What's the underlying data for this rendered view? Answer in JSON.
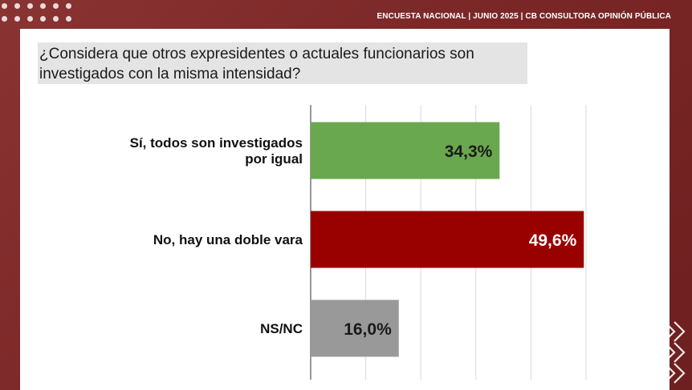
{
  "header": {
    "title": "ENCUESTA NACIONAL | JUNIO 2025 | CB CONSULTORA OPINIÓN PÚBLICA"
  },
  "question": {
    "text": "¿Considera que otros expresidentes o actuales funcionarios son\ninvestigados con la misma intensidad?"
  },
  "chart_data": {
    "type": "bar",
    "orientation": "horizontal",
    "title": "¿Considera que otros expresidentes o actuales funcionarios son investigados con la misma intensidad?",
    "categories": [
      "Sí, todos son investigados\npor igual",
      "No, hay una doble vara",
      "NS/NC"
    ],
    "values": [
      34.3,
      49.6,
      16.0
    ],
    "data_labels": [
      "34,3%",
      "49,6%",
      "16,0%"
    ],
    "colors": [
      "#6aa84f",
      "#990000",
      "#999999"
    ],
    "xlim": [
      0,
      50
    ],
    "grid": true,
    "legend": "none"
  }
}
